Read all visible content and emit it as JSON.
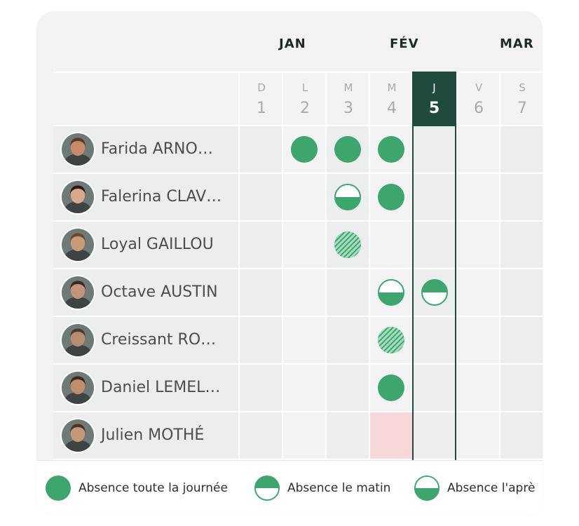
{
  "months": [
    "JAN",
    "FÉV",
    "MAR"
  ],
  "days": [
    {
      "letter": "D",
      "number": "1"
    },
    {
      "letter": "L",
      "number": "2"
    },
    {
      "letter": "M",
      "number": "3"
    },
    {
      "letter": "M",
      "number": "4"
    },
    {
      "letter": "J",
      "number": "5"
    },
    {
      "letter": "V",
      "number": "6"
    },
    {
      "letter": "S",
      "number": "7"
    }
  ],
  "today_day": "5",
  "people": [
    {
      "name": "Farida ARNO…",
      "absences": {
        "2": "full",
        "3": "full",
        "4": "full"
      }
    },
    {
      "name": "Falerina CLAV…",
      "absences": {
        "3": "afternoon",
        "4": "full"
      }
    },
    {
      "name": "Loyal GAILLOU",
      "absences": {
        "3": "pending"
      }
    },
    {
      "name": "Octave AUSTIN",
      "absences": {
        "4": "afternoon",
        "5": "morning"
      }
    },
    {
      "name": "Creissant RO…",
      "absences": {
        "4": "pending"
      }
    },
    {
      "name": "Daniel LEMEL…",
      "absences": {
        "4": "full"
      }
    },
    {
      "name": "Julien MOTHÉ",
      "absences": {
        "4": "holiday"
      }
    }
  ],
  "legend": {
    "full_day": "Absence toute la journée",
    "morning": "Absence le matin",
    "afternoon": "Absence l'aprè"
  },
  "colors": {
    "accent": "#3ea56f",
    "today": "#1f4a3d",
    "holiday": "#f8d7d9"
  }
}
